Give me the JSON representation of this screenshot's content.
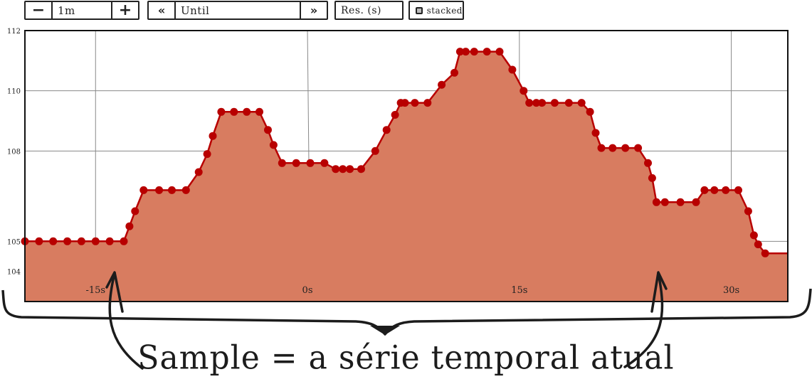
{
  "toolbar": {
    "minus_label": "−",
    "range_value": "1m",
    "plus_label": "+",
    "back_label": "«",
    "until_placeholder": "Until",
    "forward_label": "»",
    "resolution_placeholder": "Res. (s)",
    "stacked_label": "stacked"
  },
  "caption": "Sample = a série temporal atual",
  "colors": {
    "fill": "#d87c60",
    "line": "#b80000",
    "grid": "#888888",
    "frame": "#111111"
  },
  "chart_data": {
    "type": "area",
    "title": "",
    "xlabel": "",
    "ylabel": "",
    "xlim": [
      -20,
      34
    ],
    "ylim": [
      103,
      112
    ],
    "y_ticks": [
      104,
      105,
      108,
      110,
      112
    ],
    "y_tick_labels": [
      "104",
      "105",
      "108",
      "110",
      "112"
    ],
    "x_ticks": [
      -15,
      0,
      15,
      30
    ],
    "x_tick_labels": [
      "-15s",
      "0s",
      "15s",
      "30s"
    ],
    "grid": true,
    "series": [
      {
        "name": "",
        "x": [
          -20,
          -19,
          -18,
          -17,
          -16,
          -15,
          -14,
          -13,
          -12.6,
          -12.2,
          -11.6,
          -10.5,
          -9.6,
          -8.6,
          -7.7,
          -7.1,
          -6.7,
          -6.1,
          -5.2,
          -4.3,
          -3.4,
          -2.8,
          -2.4,
          -1.8,
          -0.8,
          0.2,
          1.2,
          2.0,
          2.5,
          3.0,
          3.8,
          4.8,
          5.6,
          6.2,
          6.6,
          6.9,
          7.6,
          8.5,
          9.5,
          10.4,
          10.8,
          11.2,
          11.8,
          12.7,
          13.6,
          14.5,
          15.3,
          15.7,
          16.2,
          16.6,
          17.5,
          18.5,
          19.4,
          20.0,
          20.4,
          20.8,
          21.6,
          22.5,
          23.4,
          24.1,
          24.4,
          24.7,
          25.3,
          26.4,
          27.5,
          28.1,
          28.8,
          29.6,
          30.5,
          31.2,
          31.6,
          31.9,
          32.4
        ],
        "y": [
          105.0,
          105.0,
          105.0,
          105.0,
          105.0,
          105.0,
          105.0,
          105.0,
          105.5,
          106.0,
          106.7,
          106.7,
          106.7,
          106.7,
          107.3,
          107.9,
          108.5,
          109.3,
          109.3,
          109.3,
          109.3,
          108.7,
          108.2,
          107.6,
          107.6,
          107.6,
          107.6,
          107.4,
          107.4,
          107.4,
          107.4,
          108.0,
          108.7,
          109.2,
          109.6,
          109.6,
          109.6,
          109.6,
          110.2,
          110.6,
          111.3,
          111.3,
          111.3,
          111.3,
          111.3,
          110.7,
          110.0,
          109.6,
          109.6,
          109.6,
          109.6,
          109.6,
          109.6,
          109.3,
          108.6,
          108.1,
          108.1,
          108.1,
          108.1,
          107.6,
          107.1,
          106.3,
          106.3,
          106.3,
          106.3,
          106.7,
          106.7,
          106.7,
          106.7,
          106.0,
          105.2,
          104.9,
          104.6
        ]
      }
    ]
  }
}
